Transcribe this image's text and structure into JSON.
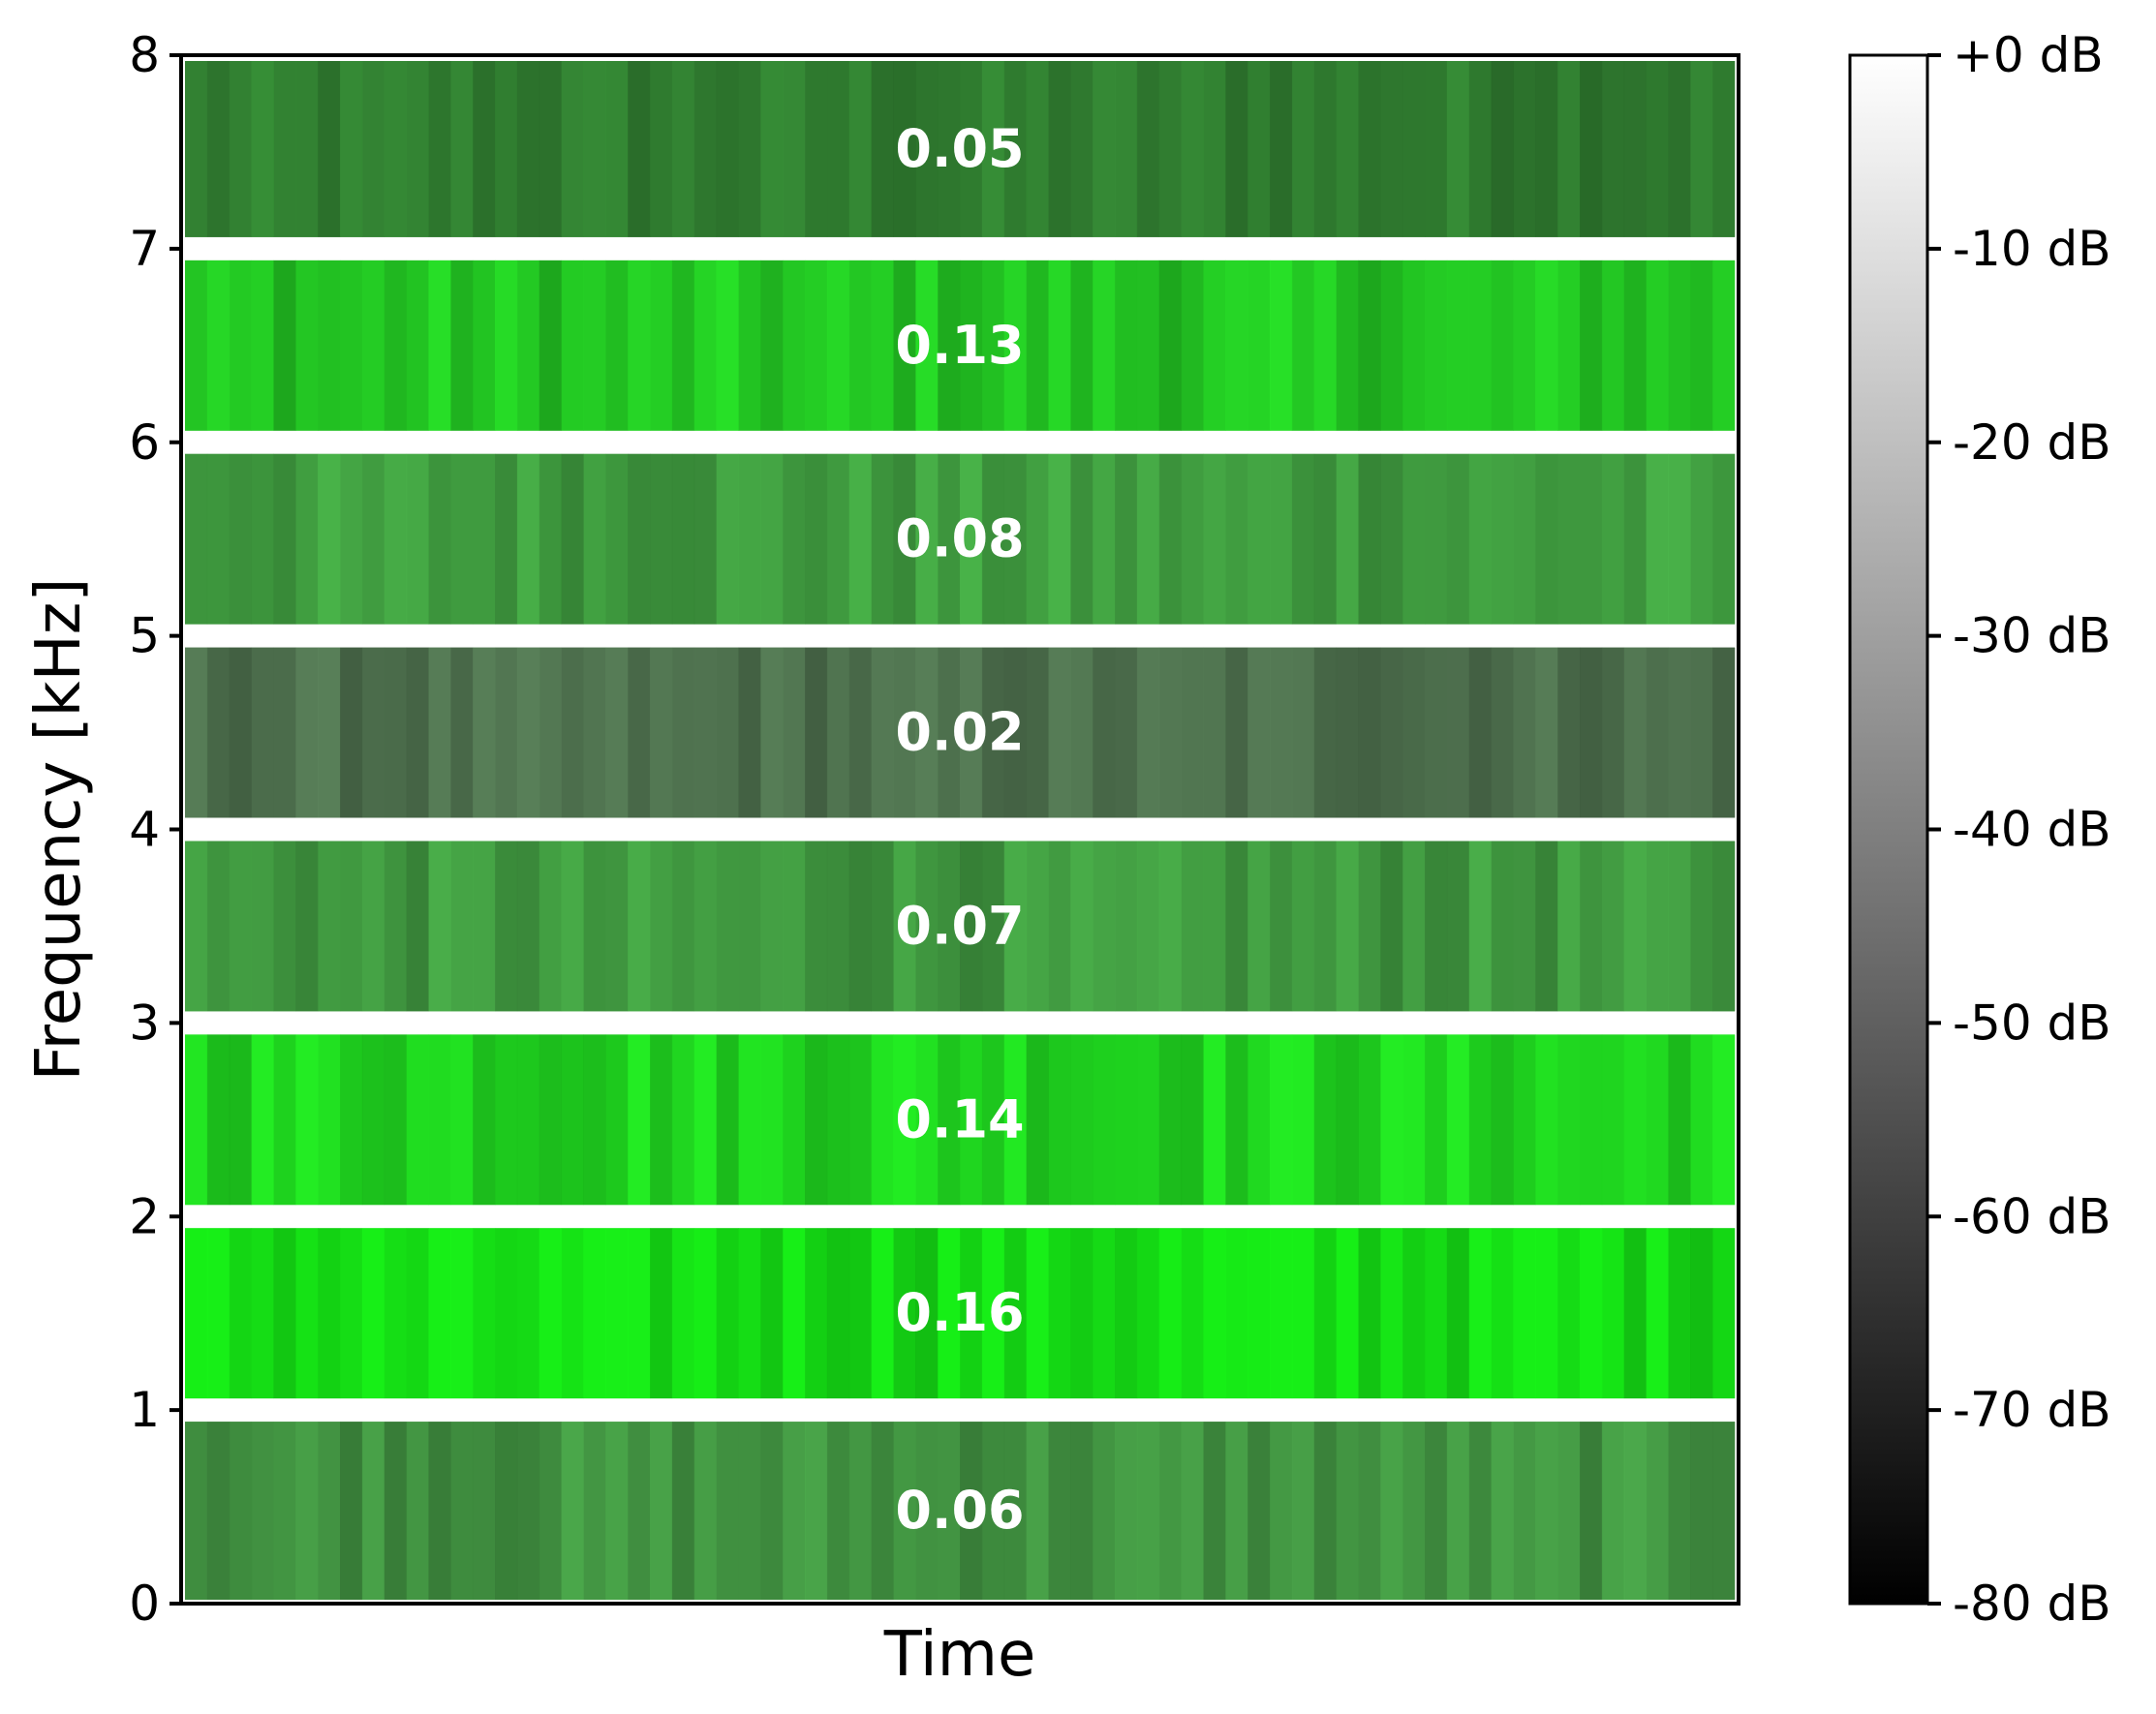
{
  "chart_data": {
    "type": "heatmap",
    "title": "",
    "xlabel": "Time",
    "ylabel": "Frequency [kHz]",
    "ylim": [
      0,
      8
    ],
    "y_ticks": [
      "0",
      "1",
      "2",
      "3",
      "4",
      "5",
      "6",
      "7",
      "8"
    ],
    "colorbar": {
      "range_db": [
        -80,
        0
      ],
      "ticks": [
        "+0 dB",
        "-10 dB",
        "-20 dB",
        "-30 dB",
        "-40 dB",
        "-50 dB",
        "-60 dB",
        "-70 dB",
        "-80 dB"
      ],
      "colormap": "grayscale"
    },
    "bands": [
      {
        "range_khz": [
          7,
          8
        ],
        "label": "0.05",
        "value": 0.05,
        "color": "#2f7a2f"
      },
      {
        "range_khz": [
          6,
          7
        ],
        "label": "0.13",
        "value": 0.13,
        "color": "#22c022"
      },
      {
        "range_khz": [
          5,
          6
        ],
        "label": "0.08",
        "value": 0.08,
        "color": "#3f9a3f"
      },
      {
        "range_khz": [
          4,
          5
        ],
        "label": "0.02",
        "value": 0.02,
        "color": "#4c6e4c"
      },
      {
        "range_khz": [
          3,
          4
        ],
        "label": "0.07",
        "value": 0.07,
        "color": "#3f953f"
      },
      {
        "range_khz": [
          2,
          3
        ],
        "label": "0.14",
        "value": 0.14,
        "color": "#1fd41f"
      },
      {
        "range_khz": [
          1,
          2
        ],
        "label": "0.16",
        "value": 0.16,
        "color": "#15dc15"
      },
      {
        "range_khz": [
          0,
          1
        ],
        "label": "0.06",
        "value": 0.06,
        "color": "#409040"
      }
    ]
  }
}
